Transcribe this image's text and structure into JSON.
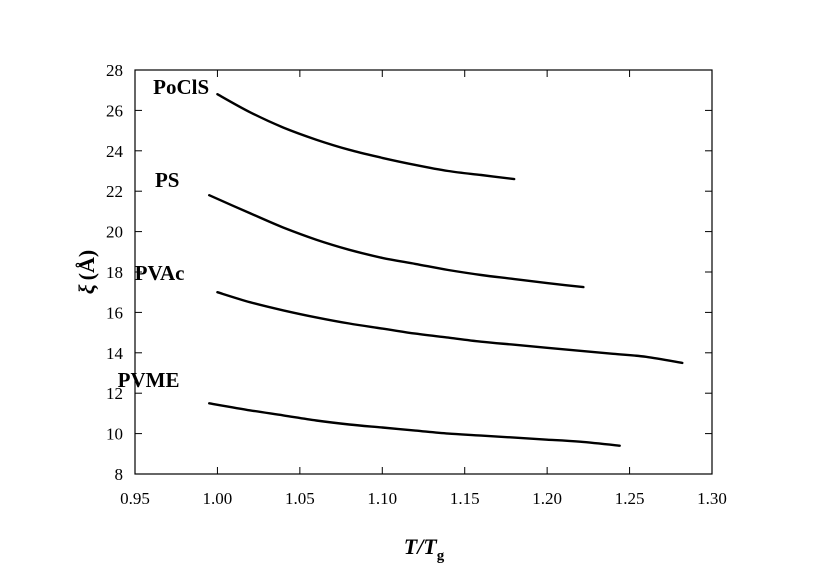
{
  "chart_data": {
    "type": "line",
    "title": "",
    "xlabel": {
      "main": "T/T",
      "sub": "g"
    },
    "ylabel": {
      "symbol": "ξ",
      "unit": "(Å)"
    },
    "xlim": [
      0.95,
      1.3
    ],
    "ylim": [
      8,
      28
    ],
    "xticks": [
      0.95,
      1.0,
      1.05,
      1.1,
      1.15,
      1.2,
      1.25,
      1.3
    ],
    "xtick_labels": [
      "0.95",
      "1.00",
      "1.05",
      "1.10",
      "1.15",
      "1.20",
      "1.25",
      "1.30"
    ],
    "yticks": [
      8,
      10,
      12,
      14,
      16,
      18,
      20,
      22,
      24,
      26,
      28
    ],
    "ytick_labels": [
      "8",
      "10",
      "12",
      "14",
      "16",
      "18",
      "20",
      "22",
      "24",
      "26",
      "28"
    ],
    "grid": false,
    "legend": "none",
    "series": [
      {
        "name": "PoClS",
        "color": "#000000",
        "x": [
          1.0,
          1.02,
          1.04,
          1.06,
          1.08,
          1.1,
          1.12,
          1.14,
          1.16,
          1.18
        ],
        "y": [
          26.8,
          25.9,
          25.15,
          24.55,
          24.05,
          23.65,
          23.3,
          23.0,
          22.8,
          22.6
        ]
      },
      {
        "name": "PS",
        "color": "#000000",
        "x": [
          0.995,
          1.02,
          1.04,
          1.06,
          1.08,
          1.1,
          1.12,
          1.14,
          1.16,
          1.18,
          1.2,
          1.222
        ],
        "y": [
          21.8,
          20.9,
          20.2,
          19.6,
          19.1,
          18.7,
          18.4,
          18.1,
          17.85,
          17.65,
          17.45,
          17.25
        ]
      },
      {
        "name": "PVAc",
        "color": "#000000",
        "x": [
          1.0,
          1.02,
          1.04,
          1.06,
          1.08,
          1.1,
          1.12,
          1.14,
          1.16,
          1.18,
          1.2,
          1.22,
          1.24,
          1.26,
          1.282
        ],
        "y": [
          17.0,
          16.5,
          16.1,
          15.75,
          15.45,
          15.2,
          14.95,
          14.75,
          14.55,
          14.4,
          14.25,
          14.1,
          13.95,
          13.8,
          13.5
        ]
      },
      {
        "name": "PVME",
        "color": "#000000",
        "x": [
          0.995,
          1.02,
          1.04,
          1.06,
          1.08,
          1.1,
          1.12,
          1.14,
          1.16,
          1.18,
          1.2,
          1.22,
          1.244
        ],
        "y": [
          11.5,
          11.15,
          10.9,
          10.65,
          10.45,
          10.3,
          10.15,
          10.0,
          9.9,
          9.8,
          9.7,
          9.6,
          9.4
        ]
      }
    ],
    "annotations": [
      {
        "text": "PoClS",
        "x": 0.995,
        "y": 26.8
      },
      {
        "text": "PS",
        "x": 0.977,
        "y": 22.2
      },
      {
        "text": "PVAc",
        "x": 0.98,
        "y": 17.6
      },
      {
        "text": "PVME",
        "x": 0.977,
        "y": 12.3
      }
    ]
  }
}
